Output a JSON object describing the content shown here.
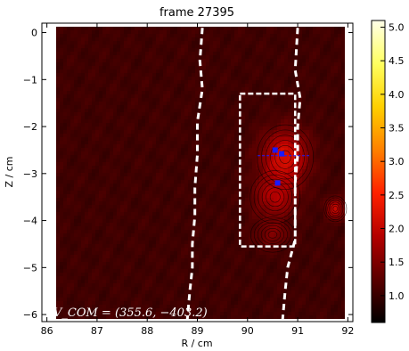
{
  "chart_data": {
    "type": "heatmap",
    "title": "frame 27395",
    "xlabel": "R / cm",
    "ylabel": "Z / cm",
    "xlim": [
      85.9,
      92.1
    ],
    "ylim": [
      -6.15,
      0.2
    ],
    "x_ticks": [
      86,
      87,
      88,
      89,
      90,
      91,
      92
    ],
    "y_ticks": [
      0,
      -1,
      -2,
      -3,
      -4,
      -5,
      -6
    ],
    "x_tick_labels": [
      "86",
      "87",
      "88",
      "89",
      "90",
      "91",
      "92"
    ],
    "y_tick_labels": [
      "0",
      "−1",
      "−2",
      "−3",
      "−4",
      "−5",
      "−6"
    ],
    "colorbar": {
      "min": 0.6,
      "max": 5.1,
      "ticks": [
        1.0,
        1.5,
        2.0,
        2.5,
        3.0,
        3.5,
        4.0,
        4.5,
        5.0
      ],
      "tick_labels": [
        "1.0",
        "1.5",
        "2.0",
        "2.5",
        "3.0",
        "3.5",
        "4.0",
        "4.5",
        "5.0"
      ],
      "colormap": "hot",
      "colors": [
        "#000000",
        "#5a0000",
        "#b40000",
        "#ff2000",
        "#ff8000",
        "#ffd000",
        "#ffff60",
        "#ffffe8"
      ]
    },
    "background_value": 1.05,
    "hotspots": [
      {
        "r": 90.75,
        "z": -2.65,
        "peak": 2.2,
        "sr": 0.45,
        "sz": 0.55
      },
      {
        "r": 90.55,
        "z": -3.5,
        "peak": 1.8,
        "sr": 0.4,
        "sz": 0.45
      },
      {
        "r": 91.75,
        "z": -3.75,
        "peak": 2.0,
        "sr": 0.18,
        "sz": 0.22
      },
      {
        "r": 90.5,
        "z": -4.3,
        "peak": 1.45,
        "sr": 0.35,
        "sz": 0.3
      }
    ],
    "dashed_box": {
      "r": [
        89.85,
        90.95
      ],
      "z": [
        -4.55,
        -1.3
      ]
    },
    "separatrix_left": [
      [
        89.1,
        0.1
      ],
      [
        89.05,
        -0.6
      ],
      [
        89.1,
        -1.2
      ],
      [
        89.0,
        -1.9
      ],
      [
        89.0,
        -2.6
      ],
      [
        88.95,
        -3.3
      ],
      [
        88.95,
        -3.9
      ],
      [
        88.9,
        -4.5
      ],
      [
        88.9,
        -5.0
      ],
      [
        88.85,
        -5.5
      ],
      [
        88.8,
        -6.1
      ]
    ],
    "separatrix_right": [
      [
        91.0,
        0.1
      ],
      [
        90.95,
        -0.8
      ],
      [
        91.05,
        -1.4
      ],
      [
        91.0,
        -2.0
      ],
      [
        91.0,
        -2.6
      ],
      [
        90.95,
        -3.2
      ],
      [
        90.95,
        -3.8
      ],
      [
        90.95,
        -4.4
      ],
      [
        90.8,
        -5.0
      ],
      [
        90.75,
        -5.5
      ],
      [
        90.7,
        -6.1
      ]
    ],
    "markers": [
      {
        "r": 90.55,
        "z": -2.5
      },
      {
        "r": 90.68,
        "z": -2.58
      },
      {
        "r": 90.6,
        "z": -3.2
      }
    ],
    "marker_color": "#1a1aff",
    "annotation": "V_COM = (355.6, −403.2)"
  }
}
